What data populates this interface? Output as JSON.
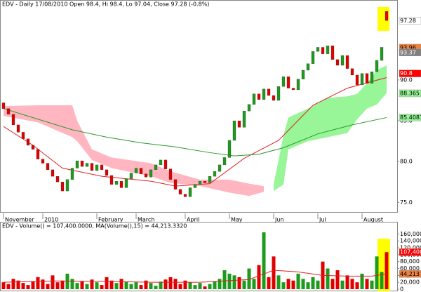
{
  "chart_data": [
    {
      "type": "candlestick",
      "title": "EDV - Daily 17/08/2010 Open 98.4, Hi 98.4, Lo 97.04, Close 97.28 (-0.8%)",
      "up_color": "#1c9b1c",
      "down_color": "#e00000",
      "open": [
        87.2,
        86.5,
        85.8,
        84.5,
        83.6,
        82.8,
        82.0,
        81.5,
        80.3,
        79.8,
        79.0,
        78.2,
        77.5,
        76.4,
        77.8,
        79.2,
        80.1,
        79.4,
        79.8,
        78.9,
        79.6,
        79.0,
        78.3,
        77.2,
        77.6,
        76.8,
        77.9,
        78.6,
        79.2,
        78.5,
        78.1,
        79.0,
        79.6,
        80.2,
        79.1,
        77.8,
        76.6,
        76.0,
        75.7,
        76.8,
        77.2,
        77.6,
        77.4,
        78.2,
        78.8,
        79.6,
        80.5,
        82.6,
        85.0,
        84.2,
        86.2,
        87.0,
        88.3,
        87.6,
        88.9,
        88.1,
        87.5,
        89.2,
        90.4,
        89.0,
        88.8,
        90.1,
        91.2,
        92.0,
        93.5,
        94.0,
        93.2,
        94.2,
        92.5,
        91.8,
        93.0,
        91.4,
        90.6,
        89.4,
        90.8,
        89.6,
        91.0,
        92.4,
        98.4
      ],
      "close": [
        86.5,
        85.8,
        84.5,
        83.6,
        82.8,
        82.0,
        81.5,
        80.3,
        79.8,
        79.0,
        78.2,
        77.5,
        76.4,
        77.8,
        79.2,
        80.1,
        79.4,
        79.8,
        78.9,
        79.6,
        79.0,
        78.3,
        77.2,
        77.6,
        76.8,
        77.9,
        78.6,
        79.2,
        78.5,
        78.1,
        79.0,
        79.6,
        80.2,
        79.1,
        77.8,
        76.6,
        76.0,
        75.7,
        76.8,
        77.2,
        77.6,
        77.4,
        78.2,
        78.8,
        79.6,
        80.5,
        82.6,
        85.0,
        84.2,
        86.2,
        87.0,
        88.3,
        87.6,
        88.9,
        88.1,
        87.5,
        89.2,
        90.4,
        89.0,
        88.8,
        90.1,
        91.2,
        92.0,
        93.5,
        94.0,
        93.2,
        94.2,
        92.5,
        91.8,
        93.0,
        91.4,
        90.6,
        89.4,
        90.8,
        89.6,
        91.0,
        92.4,
        94.0,
        97.28
      ],
      "clouds": [
        {
          "color": "#ffb6c1",
          "x": [
            0,
            7,
            14,
            15,
            18,
            22,
            30,
            34,
            40,
            46,
            50,
            53
          ],
          "upper": [
            86.8,
            86.9,
            86.9,
            85.0,
            81.5,
            80.5,
            79.8,
            78.8,
            77.8,
            77.8,
            77.3,
            77.0
          ],
          "lower": [
            85.6,
            84.8,
            83.0,
            82.5,
            80.2,
            79.2,
            78.2,
            77.4,
            77.0,
            76.2,
            75.8,
            76.3
          ]
        },
        {
          "color": "#98f598",
          "x": [
            55,
            57,
            58,
            62,
            66,
            70,
            72,
            74,
            76,
            78
          ],
          "upper": [
            77.2,
            83.2,
            85.4,
            86.5,
            87.8,
            88.0,
            88.3,
            89.6,
            91.2,
            91.8
          ],
          "lower": [
            76.4,
            77.2,
            81.5,
            82.5,
            83.0,
            83.5,
            85.2,
            86.5,
            87.0,
            88.4
          ]
        }
      ],
      "lines": [
        {
          "color": "#e02020",
          "x": [
            0,
            6,
            12,
            20,
            30,
            35,
            42,
            49,
            56,
            63,
            70,
            78
          ],
          "values": [
            84.3,
            82.0,
            79.2,
            78.2,
            77.6,
            77.0,
            77.3,
            80.4,
            82.6,
            86.9,
            89.0,
            90.3
          ]
        },
        {
          "color": "#2a9a2a",
          "x": [
            0,
            7,
            14,
            21,
            28,
            35,
            42,
            47,
            52,
            57,
            64,
            71,
            78
          ],
          "values": [
            86.5,
            85.2,
            83.9,
            83.0,
            82.3,
            81.8,
            81.1,
            80.7,
            80.9,
            81.7,
            83.4,
            84.5,
            85.4
          ]
        }
      ],
      "ylim": [
        74.0,
        99.8
      ],
      "yticks": [
        {
          "value": 75,
          "label": "75.0"
        },
        {
          "value": 80,
          "label": "80.0"
        },
        {
          "value": 85,
          "label": "85.0"
        },
        {
          "value": 90,
          "label": "90.0"
        }
      ],
      "xticks": [
        {
          "value": 0,
          "label": "November"
        },
        {
          "value": 8,
          "label": "2010"
        },
        {
          "value": 19,
          "label": "February"
        },
        {
          "value": 27,
          "label": "March"
        },
        {
          "value": 37,
          "label": "April"
        },
        {
          "value": 46,
          "label": "May"
        },
        {
          "value": 55,
          "label": "Jun"
        },
        {
          "value": 64,
          "label": "Jul"
        },
        {
          "value": 73,
          "label": "August"
        }
      ],
      "markers": [
        {
          "value": 97.28,
          "color": "#ffffff",
          "text_color": "#000000"
        },
        {
          "value": 93.96,
          "color": "#f0803c",
          "text_color": "#000000"
        },
        {
          "value": 93.37,
          "color": "#808080",
          "text_color": "#ffffff"
        },
        {
          "value": 90.8,
          "color": "#ff0000",
          "text_color": "#ffffff"
        },
        {
          "value": 88.365,
          "color": "#98f598",
          "text_color": "#000000"
        },
        {
          "value": 85.4087,
          "color": "#98f598",
          "text_color": "#000000"
        }
      ]
    },
    {
      "type": "bar",
      "title": "EDV - Volume() = 107,400.0000, MA(Volume(),15) = 44,213.3320",
      "values": [
        20000,
        15000,
        30000,
        25000,
        18000,
        12000,
        22000,
        35000,
        28000,
        15000,
        40000,
        20000,
        25000,
        45000,
        30000,
        18000,
        22000,
        15000,
        28000,
        20000,
        12000,
        35000,
        25000,
        18000,
        30000,
        22000,
        15000,
        20000,
        12000,
        25000,
        18000,
        10000,
        22000,
        28000,
        35000,
        30000,
        15000,
        25000,
        20000,
        12000,
        18000,
        8000,
        15000,
        22000,
        30000,
        55000,
        45000,
        40000,
        35000,
        25000,
        60000,
        30000,
        70000,
        165000,
        35000,
        95000,
        40000,
        20000,
        30000,
        25000,
        45000,
        30000,
        20000,
        35000,
        25000,
        80000,
        60000,
        30000,
        55000,
        25000,
        40000,
        30000,
        20000,
        45000,
        30000,
        25000,
        95000,
        50000,
        107400
      ],
      "lines": [
        {
          "color": "#e02020",
          "x": [
            0,
            10,
            20,
            30,
            40,
            50,
            55,
            60,
            65,
            70,
            75,
            78
          ],
          "values": [
            20000,
            24000,
            23000,
            20000,
            20000,
            28000,
            55000,
            50000,
            40000,
            38000,
            38000,
            44213.332
          ]
        }
      ],
      "ylim": [
        0,
        175000
      ],
      "yticks": [
        0,
        {
          "value": 20000,
          "label": "20,000"
        },
        {
          "value": 40000,
          "label": "40,000"
        },
        {
          "value": 60000,
          "label": "60,000"
        },
        {
          "value": 80000,
          "label": "80,000"
        },
        {
          "value": 100000,
          "label": "100,000"
        },
        {
          "value": 120000,
          "label": "120,000"
        },
        {
          "value": 140000,
          "label": "140,000"
        },
        {
          "value": 160000,
          "label": "160,000"
        }
      ],
      "markers": [
        {
          "value": 107400,
          "label": "107,400",
          "color": "#ff0000",
          "text_color": "#ffffff"
        },
        {
          "value": 44213.332,
          "label": "44,213",
          "color": "#f0803c",
          "text_color": "#000000"
        }
      ]
    }
  ]
}
